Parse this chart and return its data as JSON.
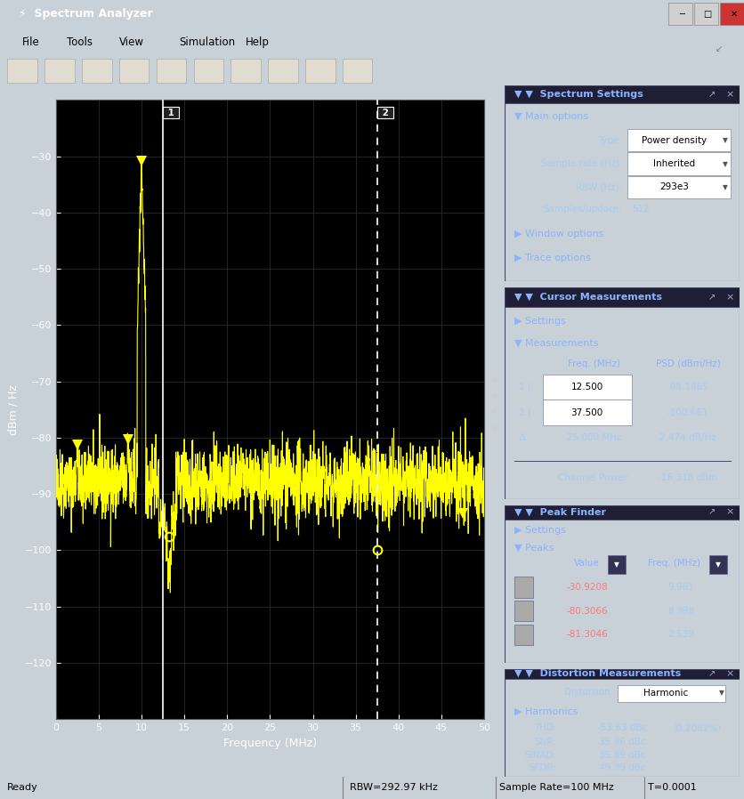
{
  "title": "Spectrum Analyzer",
  "plot_bg": "#000000",
  "xlabel": "Frequency (MHz)",
  "ylabel": "dBm / Hz",
  "xlim": [
    0,
    50
  ],
  "ylim": [
    -130,
    -20
  ],
  "yticks": [
    -30,
    -40,
    -50,
    -60,
    -70,
    -80,
    -90,
    -100,
    -110,
    -120
  ],
  "xticks": [
    0,
    5,
    10,
    15,
    20,
    25,
    30,
    35,
    40,
    45,
    50
  ],
  "signal_color": "#ffff00",
  "cursor1_x": 12.5,
  "cursor2_x": 37.5,
  "marker_color": "#ffff00",
  "status_text": "Ready",
  "rbw_text": "RBW=292.97 kHz",
  "sr_text": "Sample Rate=100 MHz",
  "t_text": "T=0.0001",
  "peak_markers": [
    [
      10.0,
      -30.9
    ],
    [
      8.4,
      -80.3
    ],
    [
      2.5,
      -81.3
    ],
    [
      31.0,
      -86.5
    ],
    [
      47.5,
      -93.5
    ]
  ],
  "circle_markers": [
    [
      13.2,
      -97.5
    ],
    [
      37.5,
      -100.0
    ]
  ],
  "ss_rows": [
    [
      "Type:",
      "Power density"
    ],
    [
      "Sample rate (Hz):",
      "Inherited"
    ],
    [
      "RBW (Hz):",
      "293e3"
    ],
    [
      "Samples/update:",
      "512"
    ]
  ],
  "cursor_rows": [
    [
      "1",
      "12.500",
      "-98.1865"
    ],
    [
      "2",
      "37.500",
      "-100.661"
    ]
  ],
  "delta_row": [
    "25.000 MHz",
    "2.474 dB/Hz"
  ],
  "channel_power": "-16.318 dBm",
  "peaks": [
    [
      "-30.9208",
      "9.961"
    ],
    [
      "-80.3066",
      "8.398"
    ],
    [
      "-81.3046",
      "2.539"
    ]
  ],
  "dist_rows": [
    [
      "THD:",
      "-53.63 dBc",
      "(0.2082%)"
    ],
    [
      "SNR:",
      "35.96 dBc",
      ""
    ],
    [
      "SINAD:",
      "35.89 dBc",
      ""
    ],
    [
      "SFDR:",
      "49.39 dBc",
      ""
    ]
  ]
}
